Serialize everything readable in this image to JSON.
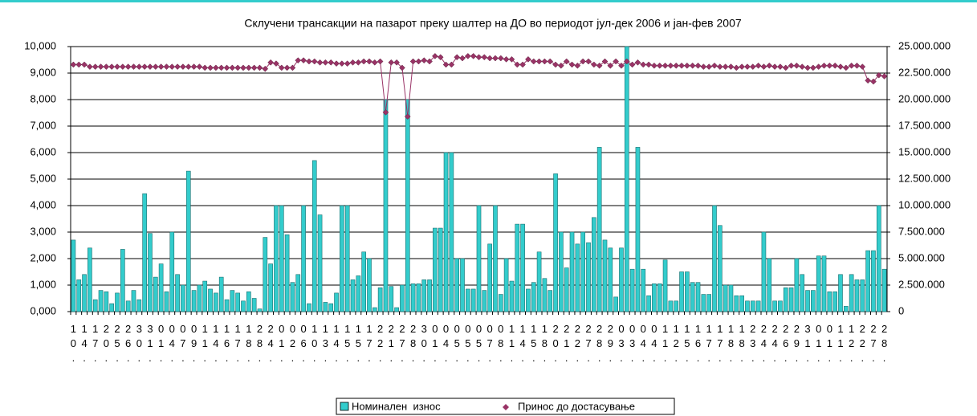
{
  "chart_data": {
    "type": "bar",
    "title": "Склучени трансакции на пазарот преку шалтер на ДО во периодот јул-дек 2006 и јан-фев 2007",
    "categories": [
      "10.",
      null,
      "14.",
      null,
      "17.",
      null,
      "20.",
      null,
      "25.",
      null,
      "26.",
      null,
      "30.",
      null,
      "31.",
      null,
      "01.",
      null,
      "04.",
      null,
      "07.",
      null,
      "09.",
      null,
      "11.",
      null,
      "14.",
      null,
      "16.",
      null,
      "17.",
      null,
      "18.",
      null,
      "28.",
      null,
      "24.",
      null,
      "01.",
      null,
      "02.",
      null,
      "06.",
      null,
      "10.",
      null,
      "13.",
      null,
      "14.",
      null,
      "15.",
      null,
      "15.",
      null,
      "17.",
      null,
      "22.",
      null,
      "21.",
      null,
      "27.",
      null,
      "28.",
      null,
      "30.",
      null,
      "01.",
      null,
      "04.",
      null,
      "05.",
      null,
      "05.",
      null,
      "05.",
      null,
      "07.",
      null,
      "08.",
      null,
      "11.",
      null,
      "14.",
      null,
      "15.",
      null,
      "18.",
      null,
      "20.",
      null,
      "21.",
      null,
      "22.",
      null,
      "27.",
      null,
      "28.",
      null,
      "29.",
      null,
      "03.",
      null,
      "03.",
      null,
      "04.",
      null,
      "04.",
      null,
      "11.",
      null,
      "12.",
      null,
      "15.",
      null,
      "16.",
      null,
      "17.",
      null,
      "17.",
      null,
      "18.",
      null,
      "18.",
      null,
      "23.",
      null,
      "24.",
      null,
      "24.",
      null,
      "26.",
      null,
      "29.",
      null,
      "31.",
      null,
      "01.",
      null,
      "01.",
      null,
      "11.",
      null,
      "12.",
      null,
      "22.",
      null,
      "27.",
      null,
      "28."
    ],
    "series": [
      {
        "name": "Номинален  износ",
        "color": "#33cccc",
        "values": [
          2700,
          1200,
          1400,
          2400,
          450,
          800,
          750,
          300,
          700,
          2350,
          400,
          800,
          450,
          4450,
          2950,
          1300,
          1800,
          750,
          3000,
          1400,
          1000,
          5300,
          800,
          1000,
          1150,
          850,
          700,
          1300,
          450,
          800,
          700,
          400,
          750,
          500,
          100,
          2800,
          1800,
          4000,
          4000,
          2900,
          1100,
          1400,
          4000,
          300,
          5700,
          3650,
          350,
          300,
          700,
          4000,
          4000,
          1200,
          1350,
          2250,
          2000,
          150,
          900,
          8000,
          950,
          150,
          1000,
          8000,
          1050,
          1050,
          1200,
          1200,
          3150,
          3150,
          6000,
          6000,
          2000,
          2000,
          850,
          850,
          4000,
          800,
          2550,
          4000,
          650,
          2000,
          1150,
          3300,
          3300,
          850,
          1100,
          2250,
          1250,
          800,
          5200,
          3000,
          1650,
          3000,
          2550,
          3000,
          2600,
          3550,
          6200,
          2700,
          2400,
          550,
          2400,
          10000,
          1600,
          6200,
          1600,
          600,
          1050,
          1050,
          1950,
          400,
          400,
          1500,
          1500,
          1100,
          1100,
          650,
          650,
          4000,
          3250,
          1000,
          1000,
          600,
          600,
          400,
          400,
          400,
          3000,
          2000,
          400,
          400,
          900,
          900,
          2000,
          1400,
          800,
          800,
          2100,
          2100,
          750,
          750,
          1400,
          200,
          1400,
          1200,
          1200,
          2300,
          2300,
          4000,
          1600
        ]
      },
      {
        "name": "Принос до достасување",
        "color": "#993366",
        "type": "line",
        "axis": "y2",
        "values": [
          23300000,
          23300000,
          23300000,
          23100000,
          23100000,
          23100000,
          23100000,
          23100000,
          23100000,
          23100000,
          23100000,
          23100000,
          23100000,
          23100000,
          23100000,
          23100000,
          23100000,
          23100000,
          23100000,
          23100000,
          23100000,
          23100000,
          23100000,
          23100000,
          23000000,
          23000000,
          23000000,
          23000000,
          23000000,
          23000000,
          23000000,
          23000000,
          23000000,
          23000000,
          23000000,
          22900000,
          23500000,
          23400000,
          23000000,
          23000000,
          23000000,
          23700000,
          23700000,
          23600000,
          23600000,
          23500000,
          23500000,
          23500000,
          23400000,
          23400000,
          23400000,
          23500000,
          23500000,
          23600000,
          23600000,
          23500000,
          23600000,
          18800000,
          23500000,
          23500000,
          23000000,
          18400000,
          23600000,
          23600000,
          23700000,
          23600000,
          24100000,
          24000000,
          23300000,
          23300000,
          24000000,
          23900000,
          24100000,
          24100000,
          24000000,
          24000000,
          23900000,
          23900000,
          23900000,
          23800000,
          23800000,
          23300000,
          23300000,
          23800000,
          23600000,
          23600000,
          23600000,
          23600000,
          23300000,
          23200000,
          23600000,
          23300000,
          23200000,
          23600000,
          23600000,
          23300000,
          23200000,
          23600000,
          23200000,
          23600000,
          23200000,
          23600000,
          23300000,
          23500000,
          23300000,
          23300000,
          23200000,
          23200000,
          23200000,
          23200000,
          23200000,
          23200000,
          23200000,
          23200000,
          23200000,
          23100000,
          23100000,
          23200000,
          23100000,
          23100000,
          23100000,
          23000000,
          23100000,
          23100000,
          23100000,
          23200000,
          23100000,
          23200000,
          23100000,
          23100000,
          23000000,
          23200000,
          23200000,
          23100000,
          23000000,
          23000000,
          23100000,
          23200000,
          23200000,
          23200000,
          23100000,
          23000000,
          23200000,
          23200000,
          23100000,
          21800000,
          21700000,
          22300000,
          22200000
        ]
      }
    ],
    "ylim": [
      0,
      10000
    ],
    "yticks": [
      {
        "value": 0,
        "label": "0,000"
      },
      {
        "value": 1000,
        "label": "1,000"
      },
      {
        "value": 2000,
        "label": "2,000"
      },
      {
        "value": 3000,
        "label": "3,000"
      },
      {
        "value": 4000,
        "label": "4,000"
      },
      {
        "value": 5000,
        "label": "5,000"
      },
      {
        "value": 6000,
        "label": "6,000"
      },
      {
        "value": 7000,
        "label": "7,000"
      },
      {
        "value": 8000,
        "label": "8,000"
      },
      {
        "value": 9000,
        "label": "9,000"
      },
      {
        "value": 10000,
        "label": "10,000"
      }
    ],
    "y2lim": [
      0,
      25000000
    ],
    "y2ticks": [
      0,
      {
        "value": 2500000,
        "label": "2.500.000"
      },
      {
        "value": 5000000,
        "label": "5.000.000"
      },
      {
        "value": 7500000,
        "label": "7.500.000"
      },
      {
        "value": 10000000,
        "label": "10.000.000"
      },
      {
        "value": 12500000,
        "label": "12.500.000"
      },
      {
        "value": 15000000,
        "label": "15.000.000"
      },
      {
        "value": 17500000,
        "label": "17.500.000"
      },
      {
        "value": 20000000,
        "label": "20.000.000"
      },
      {
        "value": 22500000,
        "label": "22.500.000"
      },
      {
        "value": 25000000,
        "label": "25.000.000"
      }
    ],
    "grid": true,
    "legend": "bottom"
  }
}
